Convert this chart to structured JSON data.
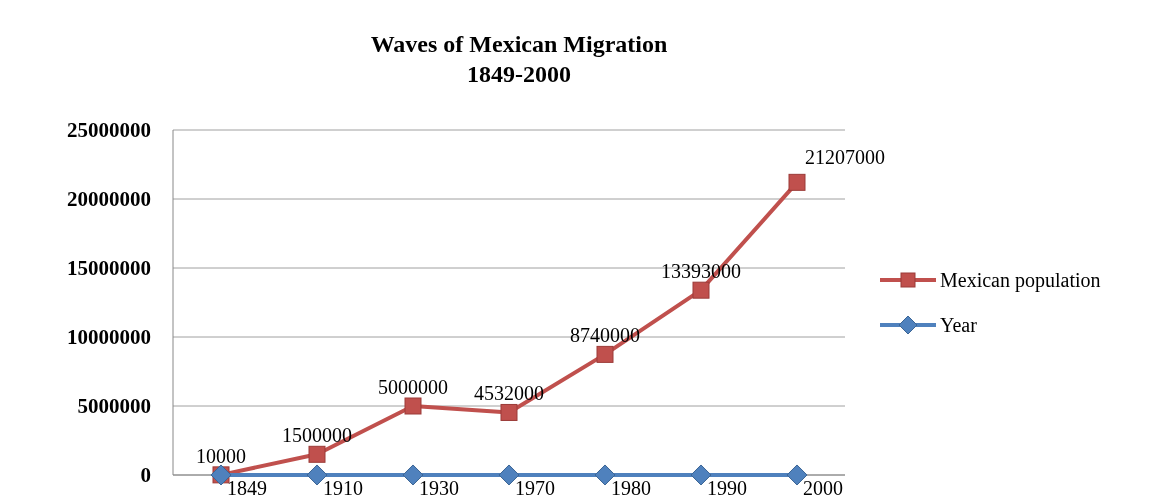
{
  "chart_data": {
    "type": "line",
    "title": "Waves of Mexican Migration\n1849-2000",
    "categories": [
      null,
      null,
      null,
      null,
      null,
      null,
      null
    ],
    "series": [
      {
        "name": "Mexican population",
        "color": "#c0504d",
        "marker": "square",
        "values": [
          10000,
          1500000,
          5000000,
          4532000,
          8740000,
          13393000,
          21207000
        ]
      },
      {
        "name": "Year",
        "color": "#4f81bd",
        "marker": "diamond",
        "values": [
          1849,
          1910,
          1930,
          1970,
          1980,
          1990,
          2000
        ]
      }
    ],
    "ylim": [
      0,
      25000000
    ],
    "yticks": [
      0,
      5000000,
      10000000,
      15000000,
      20000000,
      25000000
    ],
    "grid": "y",
    "legend": "right",
    "data_labels": true
  }
}
